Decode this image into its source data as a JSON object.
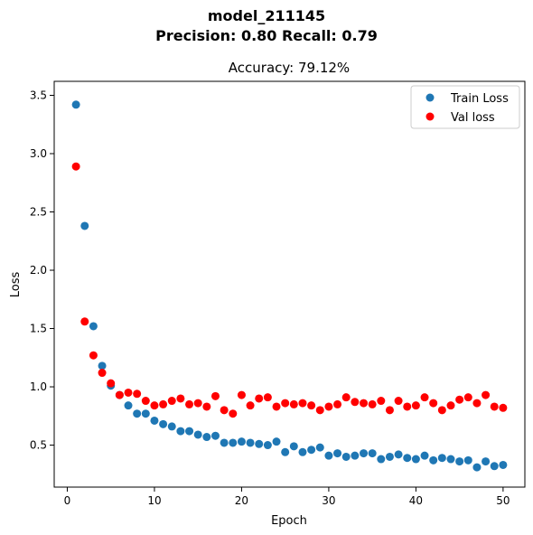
{
  "chart_data": {
    "type": "scatter",
    "suptitle_line1": "model_211145",
    "suptitle_line2": "Precision: 0.80 Recall: 0.79",
    "title": "Accuracy: 79.12%",
    "xlabel": "Epoch",
    "ylabel": "Loss",
    "xlim": [
      -1.5,
      52.5
    ],
    "ylim": [
      0.14,
      3.62
    ],
    "xticks": [
      0,
      10,
      20,
      30,
      40,
      50
    ],
    "yticks": [
      0.5,
      1.0,
      1.5,
      2.0,
      2.5,
      3.0,
      3.5
    ],
    "xtick_labels": [
      "0",
      "10",
      "20",
      "30",
      "40",
      "50"
    ],
    "ytick_labels": [
      "0.5",
      "1.0",
      "1.5",
      "2.0",
      "2.5",
      "3.0",
      "3.5"
    ],
    "legend_position": "top-right",
    "grid": false,
    "x": [
      1,
      2,
      3,
      4,
      5,
      6,
      7,
      8,
      9,
      10,
      11,
      12,
      13,
      14,
      15,
      16,
      17,
      18,
      19,
      20,
      21,
      22,
      23,
      24,
      25,
      26,
      27,
      28,
      29,
      30,
      31,
      32,
      33,
      34,
      35,
      36,
      37,
      38,
      39,
      40,
      41,
      42,
      43,
      44,
      45,
      46,
      47,
      48,
      49,
      50
    ],
    "series": [
      {
        "name": "Train Loss",
        "color": "#1f77b4",
        "values": [
          3.42,
          2.38,
          1.52,
          1.18,
          1.01,
          0.93,
          0.84,
          0.77,
          0.77,
          0.71,
          0.68,
          0.66,
          0.62,
          0.62,
          0.59,
          0.57,
          0.58,
          0.52,
          0.52,
          0.53,
          0.52,
          0.51,
          0.5,
          0.53,
          0.44,
          0.49,
          0.44,
          0.46,
          0.48,
          0.41,
          0.43,
          0.4,
          0.41,
          0.43,
          0.43,
          0.38,
          0.4,
          0.42,
          0.39,
          0.38,
          0.41,
          0.37,
          0.39,
          0.38,
          0.36,
          0.37,
          0.31,
          0.36,
          0.32,
          0.33
        ]
      },
      {
        "name": "Val loss",
        "color": "#ff0000",
        "values": [
          2.89,
          1.56,
          1.27,
          1.12,
          1.03,
          0.93,
          0.95,
          0.94,
          0.88,
          0.84,
          0.85,
          0.88,
          0.9,
          0.85,
          0.86,
          0.83,
          0.92,
          0.8,
          0.77,
          0.93,
          0.84,
          0.9,
          0.91,
          0.83,
          0.86,
          0.85,
          0.86,
          0.84,
          0.8,
          0.83,
          0.85,
          0.91,
          0.87,
          0.86,
          0.85,
          0.88,
          0.8,
          0.88,
          0.83,
          0.84,
          0.91,
          0.86,
          0.8,
          0.84,
          0.89,
          0.91,
          0.86,
          0.93,
          0.83,
          0.82
        ]
      }
    ]
  }
}
